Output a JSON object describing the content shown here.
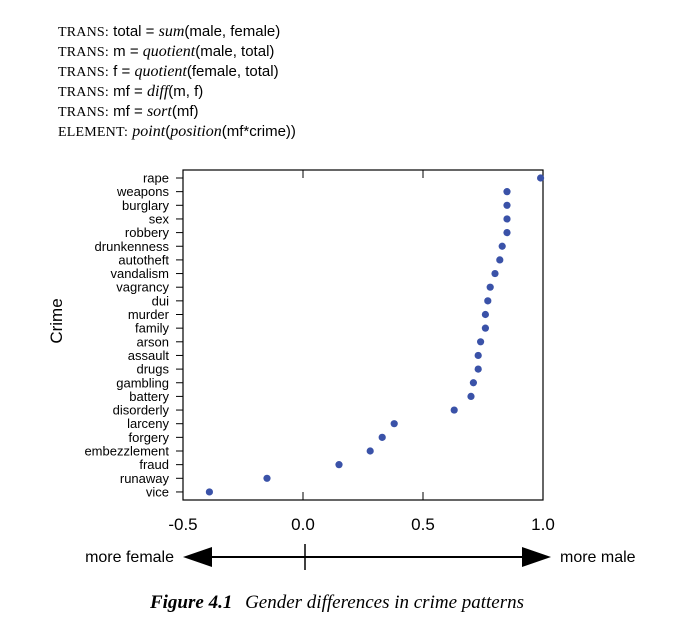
{
  "trans_lines": [
    {
      "kw": "TRANS:",
      "pre": " total = ",
      "fn": "sum",
      "post": "(male, female)"
    },
    {
      "kw": "TRANS:",
      "pre": " m = ",
      "fn": "quotient",
      "post": "(male, total)"
    },
    {
      "kw": "TRANS:",
      "pre": " f = ",
      "fn": "quotient",
      "post": "(female, total)"
    },
    {
      "kw": "TRANS:",
      "pre": " mf = ",
      "fn": "diff",
      "post": "(m, f)"
    },
    {
      "kw": "TRANS:",
      "pre": " mf = ",
      "fn": "sort",
      "post": "(mf)"
    },
    {
      "kw": "ELEMENT:",
      "pre": " ",
      "fn": "point",
      "post": "(",
      "fn2": "position",
      "post2": "(mf*crime))"
    }
  ],
  "chart_data": {
    "type": "scatter",
    "title": "",
    "xlabel": "",
    "ylabel": "Crime",
    "xlim": [
      -0.5,
      1.0
    ],
    "xticks": [
      "-0.5",
      "0.0",
      "0.5",
      "1.0"
    ],
    "categories": [
      "rape",
      "weapons",
      "burglary",
      "sex",
      "robbery",
      "drunkenness",
      "autotheft",
      "vandalism",
      "vagrancy",
      "dui",
      "murder",
      "family",
      "arson",
      "assault",
      "drugs",
      "gambling",
      "battery",
      "disorderly",
      "larceny",
      "forgery",
      "embezzlement",
      "fraud",
      "runaway",
      "vice"
    ],
    "values": [
      0.99,
      0.85,
      0.85,
      0.85,
      0.85,
      0.83,
      0.82,
      0.8,
      0.78,
      0.77,
      0.76,
      0.76,
      0.74,
      0.73,
      0.73,
      0.71,
      0.7,
      0.63,
      0.38,
      0.33,
      0.28,
      0.15,
      -0.15,
      -0.39
    ],
    "point_color": "#3a52a8",
    "grid": false,
    "arrow": {
      "left_label": "more female",
      "right_label": "more male"
    }
  },
  "caption": {
    "figure": "Figure 4.1",
    "text": "Gender differences in crime patterns"
  }
}
